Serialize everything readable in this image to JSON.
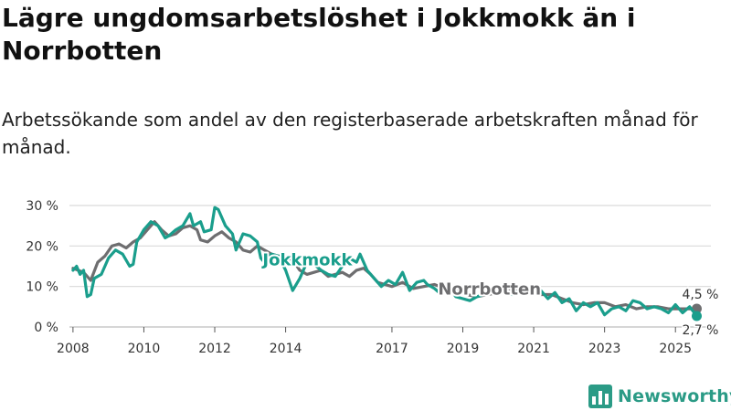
{
  "title": "Lägre ungdomsarbetslöshet i Jokkmokk än i Norrbotten",
  "subtitle": "Arbetssökande som andel av den registerbaserade arbetskraften månad för månad.",
  "brand": {
    "name": "Newsworthy",
    "icon": "bar-chart-logo-icon"
  },
  "colors": {
    "jokkmokk": "#1a9e8c",
    "norrbotten": "#6e6e70",
    "grid": "#d9d9d9",
    "brand": "#2b9b86"
  },
  "chart_data": {
    "type": "line",
    "xlabel": "",
    "ylabel": "",
    "xlim": [
      2007.9,
      2026.0
    ],
    "ylim": [
      0,
      30
    ],
    "y_ticks": [
      0,
      10,
      20,
      30
    ],
    "y_tick_labels": [
      "0 %",
      "10 %",
      "20 %",
      "30 %"
    ],
    "x_ticks": [
      2008,
      2010,
      2012,
      2014,
      2017,
      2019,
      2021,
      2023,
      2025
    ],
    "x_tick_labels": [
      "2008",
      "2010",
      "2012",
      "2014",
      "2017",
      "2019",
      "2021",
      "2023",
      "2025"
    ],
    "series": [
      {
        "name": "Norrbotten",
        "label": "Norrbotten",
        "end_label": "4,5 %",
        "points": [
          [
            2008.0,
            14.5
          ],
          [
            2008.3,
            13.5
          ],
          [
            2008.5,
            11.5
          ],
          [
            2008.7,
            16
          ],
          [
            2008.9,
            17.5
          ],
          [
            2009.1,
            20
          ],
          [
            2009.3,
            20.5
          ],
          [
            2009.5,
            19.5
          ],
          [
            2009.7,
            21
          ],
          [
            2009.9,
            22
          ],
          [
            2010.1,
            24
          ],
          [
            2010.3,
            26
          ],
          [
            2010.5,
            24
          ],
          [
            2010.7,
            22.5
          ],
          [
            2010.9,
            23
          ],
          [
            2011.1,
            24.5
          ],
          [
            2011.3,
            25
          ],
          [
            2011.5,
            24
          ],
          [
            2011.6,
            21.5
          ],
          [
            2011.8,
            21
          ],
          [
            2012.0,
            22.5
          ],
          [
            2012.2,
            23.5
          ],
          [
            2012.4,
            22
          ],
          [
            2012.6,
            21
          ],
          [
            2012.8,
            19
          ],
          [
            2013.0,
            18.5
          ],
          [
            2013.2,
            20
          ],
          [
            2013.4,
            19
          ],
          [
            2013.6,
            18
          ],
          [
            2013.8,
            17.5
          ],
          [
            2014.0,
            17.5
          ],
          [
            2014.2,
            16.5
          ],
          [
            2014.4,
            14
          ],
          [
            2014.6,
            13
          ],
          [
            2014.8,
            13.5
          ],
          [
            2015.0,
            14
          ],
          [
            2015.2,
            12.5
          ],
          [
            2015.4,
            13
          ],
          [
            2015.6,
            13.5
          ],
          [
            2015.8,
            12.5
          ],
          [
            2016.0,
            14
          ],
          [
            2016.2,
            14.5
          ],
          [
            2016.4,
            13
          ],
          [
            2016.6,
            11
          ],
          [
            2016.8,
            10.5
          ],
          [
            2017.0,
            10
          ],
          [
            2017.3,
            11
          ],
          [
            2017.6,
            9.5
          ],
          [
            2017.9,
            10
          ],
          [
            2018.2,
            10.5
          ],
          [
            2018.5,
            9.5
          ],
          [
            2018.8,
            9
          ],
          [
            2019.1,
            8
          ],
          [
            2019.4,
            7.5
          ],
          [
            2019.7,
            8
          ],
          [
            2020.0,
            8.5
          ],
          [
            2020.3,
            9.5
          ],
          [
            2020.6,
            9
          ],
          [
            2020.9,
            8.5
          ],
          [
            2021.2,
            8
          ],
          [
            2021.5,
            8
          ],
          [
            2021.8,
            7
          ],
          [
            2022.1,
            6
          ],
          [
            2022.4,
            5.5
          ],
          [
            2022.7,
            6
          ],
          [
            2023.0,
            6
          ],
          [
            2023.3,
            5
          ],
          [
            2023.6,
            5.5
          ],
          [
            2023.9,
            4.5
          ],
          [
            2024.2,
            5
          ],
          [
            2024.5,
            5
          ],
          [
            2024.8,
            4.5
          ],
          [
            2025.1,
            4.5
          ],
          [
            2025.4,
            4.5
          ],
          [
            2025.6,
            4.5
          ]
        ]
      },
      {
        "name": "Jokkmokk",
        "label": "Jokkmokk",
        "end_label": "2,7 %",
        "points": [
          [
            2008.0,
            14
          ],
          [
            2008.1,
            15
          ],
          [
            2008.2,
            13
          ],
          [
            2008.3,
            14
          ],
          [
            2008.4,
            7.5
          ],
          [
            2008.5,
            8
          ],
          [
            2008.6,
            12
          ],
          [
            2008.8,
            13
          ],
          [
            2009.0,
            17
          ],
          [
            2009.2,
            19
          ],
          [
            2009.4,
            18
          ],
          [
            2009.6,
            15
          ],
          [
            2009.7,
            15.5
          ],
          [
            2009.8,
            21
          ],
          [
            2010.0,
            24
          ],
          [
            2010.2,
            26
          ],
          [
            2010.4,
            25
          ],
          [
            2010.6,
            22
          ],
          [
            2010.7,
            22.5
          ],
          [
            2010.9,
            24
          ],
          [
            2011.1,
            25
          ],
          [
            2011.3,
            28
          ],
          [
            2011.4,
            25
          ],
          [
            2011.6,
            26
          ],
          [
            2011.7,
            23.5
          ],
          [
            2011.9,
            24
          ],
          [
            2012.0,
            29.5
          ],
          [
            2012.1,
            29
          ],
          [
            2012.3,
            25
          ],
          [
            2012.5,
            23
          ],
          [
            2012.6,
            19
          ],
          [
            2012.8,
            23
          ],
          [
            2013.0,
            22.5
          ],
          [
            2013.2,
            21
          ],
          [
            2013.3,
            17
          ],
          [
            2013.4,
            16
          ],
          [
            2013.6,
            18
          ],
          [
            2013.8,
            17.5
          ],
          [
            2014.0,
            14
          ],
          [
            2014.2,
            9
          ],
          [
            2014.4,
            12
          ],
          [
            2014.6,
            16
          ],
          [
            2014.8,
            15.5
          ],
          [
            2015.0,
            14
          ],
          [
            2015.2,
            13
          ],
          [
            2015.4,
            12.5
          ],
          [
            2015.6,
            15
          ],
          [
            2015.8,
            17
          ],
          [
            2016.0,
            16
          ],
          [
            2016.1,
            18
          ],
          [
            2016.3,
            14
          ],
          [
            2016.5,
            12
          ],
          [
            2016.7,
            10
          ],
          [
            2016.9,
            11.5
          ],
          [
            2017.1,
            10.5
          ],
          [
            2017.3,
            13.5
          ],
          [
            2017.5,
            9
          ],
          [
            2017.7,
            11
          ],
          [
            2017.9,
            11.5
          ],
          [
            2018.0,
            10.5
          ],
          [
            2018.2,
            9.5
          ],
          [
            2018.4,
            8
          ],
          [
            2018.6,
            10
          ],
          [
            2018.8,
            7.5
          ],
          [
            2019.0,
            7
          ],
          [
            2019.2,
            6.5
          ],
          [
            2019.4,
            7.5
          ],
          [
            2019.6,
            8
          ],
          [
            2019.8,
            9
          ],
          [
            2020.0,
            10
          ],
          [
            2020.2,
            8.5
          ],
          [
            2020.4,
            8
          ],
          [
            2020.6,
            9
          ],
          [
            2020.8,
            10
          ],
          [
            2021.0,
            8.5
          ],
          [
            2021.2,
            9
          ],
          [
            2021.4,
            7
          ],
          [
            2021.6,
            8.5
          ],
          [
            2021.8,
            6
          ],
          [
            2022.0,
            7
          ],
          [
            2022.2,
            4
          ],
          [
            2022.4,
            6
          ],
          [
            2022.6,
            5
          ],
          [
            2022.8,
            6
          ],
          [
            2023.0,
            3
          ],
          [
            2023.2,
            4.5
          ],
          [
            2023.4,
            5
          ],
          [
            2023.6,
            4
          ],
          [
            2023.8,
            6.5
          ],
          [
            2024.0,
            6
          ],
          [
            2024.2,
            4.5
          ],
          [
            2024.4,
            5
          ],
          [
            2024.6,
            4.5
          ],
          [
            2024.8,
            3.5
          ],
          [
            2025.0,
            5.5
          ],
          [
            2025.2,
            3.5
          ],
          [
            2025.4,
            5
          ],
          [
            2025.6,
            2.7
          ]
        ]
      }
    ]
  }
}
